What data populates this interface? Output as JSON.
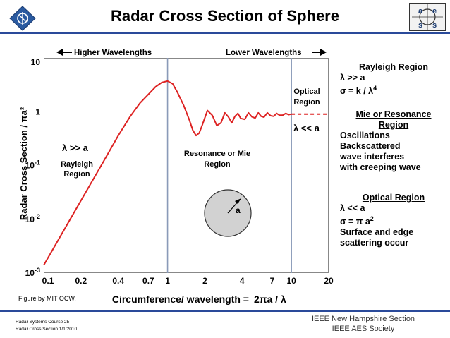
{
  "header": {
    "title": "Radar Cross Section of Sphere"
  },
  "logos": {
    "left_icon": "ieee-logo-icon",
    "right_letters": [
      "a",
      "e",
      "s",
      "s"
    ]
  },
  "chart_data": {
    "type": "line",
    "title": "Radar Cross Section of Sphere",
    "xlabel_prefix": "Circumference/ wavelength =",
    "xlabel_formula": "2πa / λ",
    "ylabel": "Radar Cross Section / πa²",
    "x_ticks": [
      "0.1",
      "0.2",
      "0.4",
      "0.7",
      "1",
      "2",
      "4",
      "7",
      "10",
      "20"
    ],
    "y_ticks": [
      {
        "base": "10",
        "exp": ""
      },
      {
        "base": "1",
        "exp": ""
      },
      {
        "base": "10",
        "exp": "-1"
      },
      {
        "base": "10",
        "exp": "-2"
      },
      {
        "base": "10",
        "exp": "-3"
      }
    ],
    "xlim": [
      0.1,
      20
    ],
    "ylim": [
      0.001,
      10
    ],
    "xscale": "log",
    "yscale": "log",
    "region_boundaries": [
      1,
      10
    ],
    "series": [
      {
        "name": "RCS / πa²",
        "color": "#dd2222",
        "x": [
          0.1,
          0.2,
          0.3,
          0.4,
          0.5,
          0.6,
          0.7,
          0.8,
          0.9,
          1.0,
          1.1,
          1.2,
          1.35,
          1.5,
          1.6,
          1.7,
          1.8,
          1.9,
          2.1,
          2.3,
          2.5,
          2.7,
          2.9,
          3.1,
          3.3,
          3.5,
          3.7,
          3.9,
          4.2,
          4.5,
          4.8,
          5.1,
          5.4,
          5.7,
          6.0,
          6.4,
          6.8,
          7.2,
          7.6,
          8.0,
          8.5,
          9.0,
          9.5,
          10.0
        ],
        "values": [
          0.0014,
          0.0224,
          0.113,
          0.36,
          0.82,
          1.45,
          2.1,
          2.9,
          3.5,
          3.7,
          3.3,
          2.3,
          1.3,
          0.7,
          0.45,
          0.36,
          0.4,
          0.55,
          1.05,
          0.85,
          0.55,
          0.62,
          0.95,
          0.8,
          0.62,
          0.82,
          0.93,
          0.75,
          0.72,
          0.95,
          0.8,
          0.76,
          0.95,
          0.82,
          0.79,
          0.95,
          0.84,
          0.82,
          0.93,
          0.86,
          0.86,
          0.93,
          0.88,
          0.9
        ]
      },
      {
        "name": "Optical limit",
        "color": "#dd2222",
        "style": "dashed",
        "x": [
          10,
          20
        ],
        "values": [
          0.9,
          0.9
        ]
      }
    ]
  },
  "annotations": {
    "higher": "Higher Wavelengths",
    "lower": "Lower Wavelengths",
    "lambda_gg": "λ >> a",
    "rayleigh1": "Rayleigh",
    "rayleigh2": "Region",
    "resonance1": "Resonance or Mie",
    "resonance2": "Region",
    "optical1": "Optical",
    "optical2": "Region",
    "lambda_ll": "λ << a",
    "sphere_radius": "a",
    "credit": "Figure by MIT OCW."
  },
  "side_panel": {
    "rayleigh": {
      "header": "Rayleigh Region",
      "line1": "λ >> a",
      "line2_pre": "σ = k / λ",
      "line2_exp": "4"
    },
    "mie": {
      "header1": "Mie or Resonance",
      "header2": "Region",
      "lines": [
        "Oscillations",
        "Backscattered",
        "wave interferes",
        "with creeping wave"
      ]
    },
    "optical": {
      "header": "Optical Region",
      "line1": "λ << a",
      "line2_pre": "σ = π a",
      "line2_exp": "2",
      "line3": "Surface and edge",
      "line4": "scattering occur"
    }
  },
  "footer": {
    "course": "Radar Systems Course   25",
    "topic": "Radar Cross Section  1/1/2010",
    "org1": "IEEE New Hampshire Section",
    "org2": "IEEE AES Society"
  }
}
